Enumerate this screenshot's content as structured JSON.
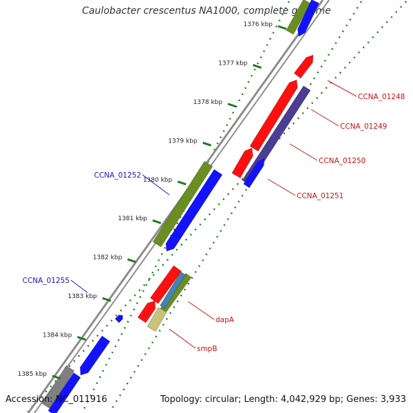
{
  "title": "Caulobacter crescentus NA1000, complete genome",
  "accession_text": "Accession: NC_011916",
  "summary_text": "Topology: circular; Length: 4,042,929 bp; Genes: 3,933",
  "colors": {
    "backbone": "#8c8c8c",
    "tick": "#1e7a1e",
    "forward_gene_label": "#1515cc",
    "reverse_gene_label": "#cc1111",
    "red": "#ff1010",
    "blue": "#1212ff",
    "olive": "#6b8e23",
    "purple": "#4b3c94",
    "gray": "#808080",
    "steel": "#4682b4",
    "khaki": "#c8c27a"
  },
  "ruler_ticks": [
    {
      "label": "1376 kbp"
    },
    {
      "label": "1377 kbp"
    },
    {
      "label": "1378 kbp"
    },
    {
      "label": "1379 kbp"
    },
    {
      "label": "1380 kbp"
    },
    {
      "label": "1381 kbp"
    },
    {
      "label": "1382 kbp"
    },
    {
      "label": "1383 kbp"
    },
    {
      "label": "1384 kbp"
    },
    {
      "label": "1385 kbp"
    }
  ],
  "gene_labels": [
    {
      "id": "ccna-01248",
      "text": "CCNA_01248",
      "strand": "reverse"
    },
    {
      "id": "ccna-01249",
      "text": "CCNA_01249",
      "strand": "reverse"
    },
    {
      "id": "ccna-01250",
      "text": "CCNA_01250",
      "strand": "reverse"
    },
    {
      "id": "ccna-01251",
      "text": "CCNA_01251",
      "strand": "reverse"
    },
    {
      "id": "ccna-01252",
      "text": "CCNA_01252",
      "strand": "forward"
    },
    {
      "id": "ccna-01255",
      "text": "CCNA_01255",
      "strand": "forward"
    },
    {
      "id": "dapa",
      "text": "dapA",
      "strand": "reverse"
    },
    {
      "id": "smpb",
      "text": "smpB",
      "strand": "reverse"
    }
  ]
}
